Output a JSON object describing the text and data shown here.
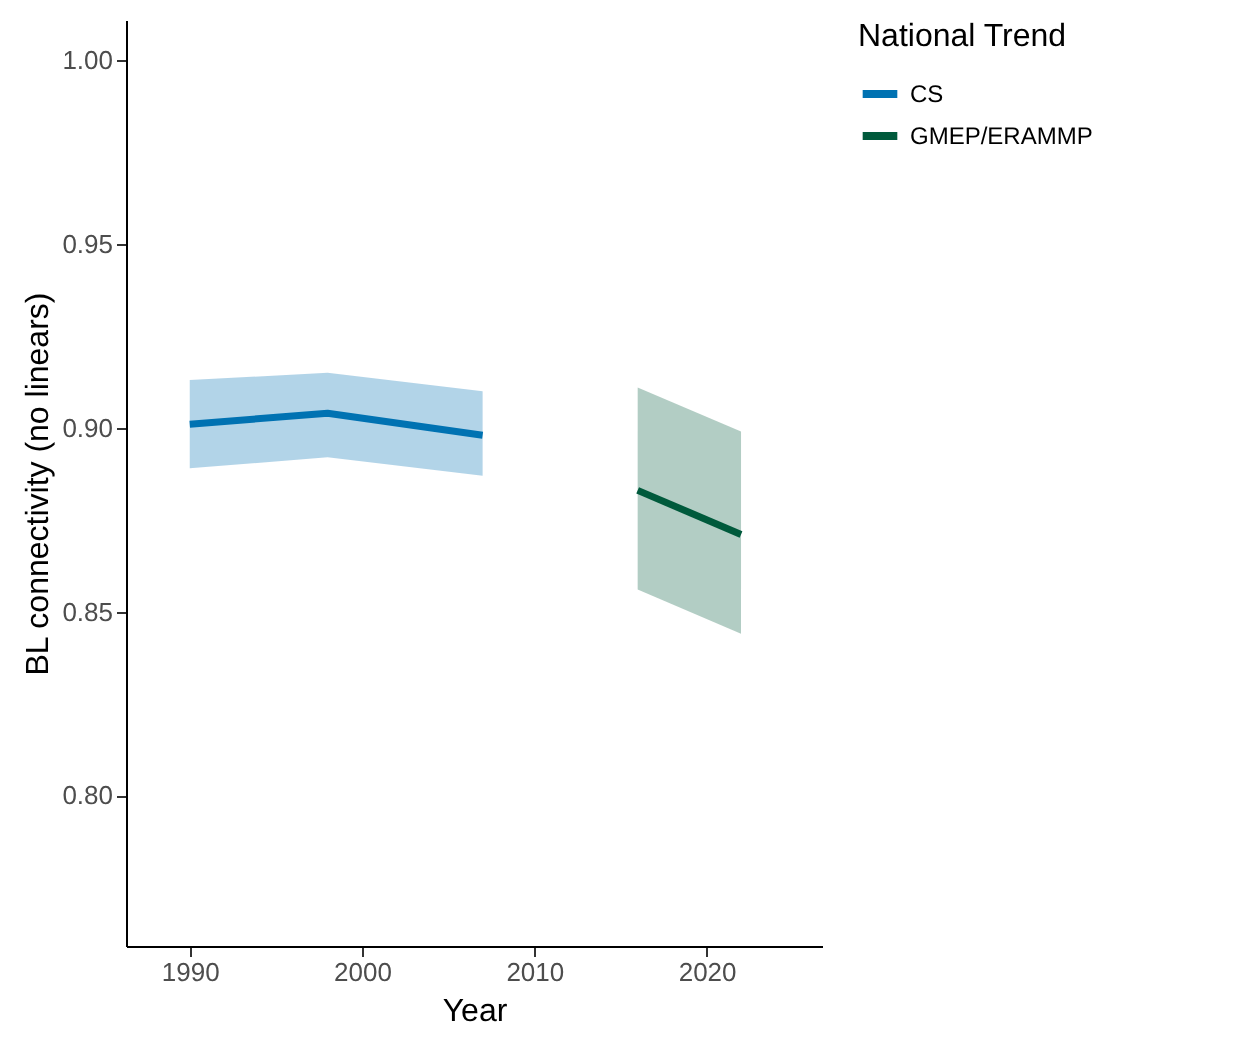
{
  "chart_data": {
    "type": "line",
    "xlabel": "Year",
    "ylabel": "BL connectivity (no linears)",
    "legend_title": "National Trend",
    "legend": "right",
    "grid": false,
    "xlim": [
      1986.3,
      2026.7
    ],
    "xticks": [
      1990,
      2000,
      2010,
      2020
    ],
    "ylim": [
      0.759,
      1.011
    ],
    "yticks": [
      {
        "value": 0.8,
        "label": "0.80"
      },
      0.85,
      {
        "value": 0.9,
        "label": "0.90"
      },
      0.95,
      {
        "value": 1.0,
        "label": "1.00"
      }
    ],
    "series": [
      {
        "name": "CS",
        "color": "#0072b2",
        "x": [
          1990,
          1998,
          2007
        ],
        "values": [
          0.901,
          0.904,
          0.898
        ],
        "lower": [
          0.889,
          0.892,
          0.887
        ],
        "upper": [
          0.913,
          0.915,
          0.91
        ]
      },
      {
        "name": "GMEP/ERAMMP",
        "color": "#005a3c",
        "x": [
          2016,
          2022
        ],
        "values": [
          0.883,
          0.871
        ],
        "lower": [
          0.856,
          0.844
        ],
        "upper": [
          0.911,
          0.899
        ]
      }
    ]
  }
}
